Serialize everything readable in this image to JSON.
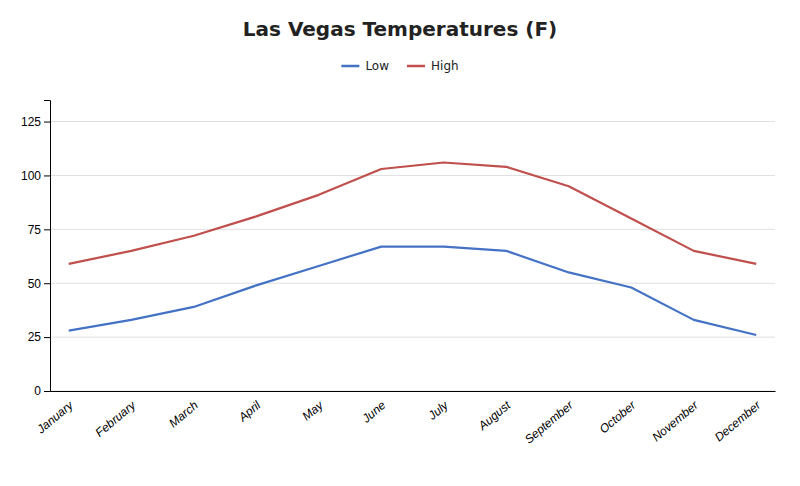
{
  "chart_data": {
    "type": "line",
    "title": "Las Vegas Temperatures (F)",
    "categories": [
      "January",
      "February",
      "March",
      "April",
      "May",
      "June",
      "July",
      "August",
      "September",
      "October",
      "November",
      "December"
    ],
    "series": [
      {
        "name": "Low",
        "color": "#4472C4",
        "values": [
          28,
          33,
          39,
          49,
          58,
          67,
          67,
          65,
          55,
          48,
          33,
          26
        ]
      },
      {
        "name": "High",
        "color": "#C0504D",
        "values": [
          59,
          65,
          72,
          81,
          91,
          103,
          106,
          104,
          95,
          80,
          65,
          59
        ]
      }
    ],
    "ylim": [
      0,
      135
    ],
    "yticks": [
      0,
      25,
      50,
      75,
      100,
      125
    ],
    "grid": true,
    "legend": "top"
  }
}
